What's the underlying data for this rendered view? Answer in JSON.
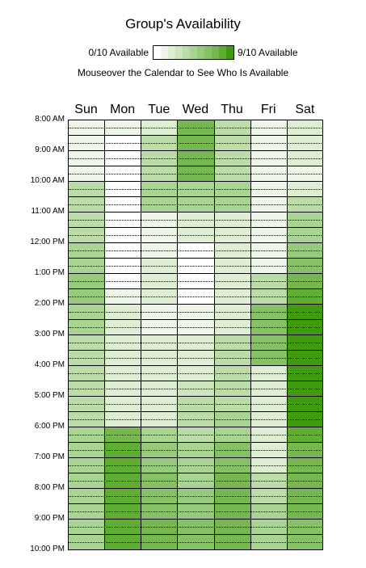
{
  "title": "Group's Availability",
  "legend": {
    "min_label": "0/10 Available",
    "max_label": "9/10 Available",
    "max_count": 9,
    "scale_colors": [
      "#ffffff",
      "#eef6e9",
      "#ddeed3",
      "#cce5bd",
      "#bbdca7",
      "#a9d391",
      "#98ca7b",
      "#87c165",
      "#76b84f",
      "#5fad33",
      "#3f9b0d"
    ]
  },
  "instructions": "Mouseover the Calendar to See Who Is Available",
  "days": [
    "Sun",
    "Mon",
    "Tue",
    "Wed",
    "Thu",
    "Fri",
    "Sat"
  ],
  "time_labels": [
    "8:00 AM",
    "9:00 AM",
    "10:00 AM",
    "11:00 AM",
    "12:00 PM",
    "1:00 PM",
    "2:00 PM",
    "3:00 PM",
    "4:00 PM",
    "5:00 PM",
    "6:00 PM",
    "7:00 PM",
    "8:00 PM",
    "9:00 PM",
    "10:00 PM"
  ],
  "availability_colors": [
    [
      "#eef6e9",
      "#eef6e9",
      "#eef6e9",
      "#eef6e9",
      "#eef6e9",
      "#eef6e9",
      "#eef6e9",
      "#eef6e9",
      "#bbdca7",
      "#bbdca7",
      "#bbdca7",
      "#bbdca7",
      "#bbdca7",
      "#bbdca7",
      "#bbdca7",
      "#bbdca7",
      "#a9d391",
      "#a9d391",
      "#a9d391",
      "#a9d391",
      "#98ca7b",
      "#98ca7b",
      "#98ca7b",
      "#98ca7b",
      "#a9d391",
      "#a9d391",
      "#a9d391",
      "#a9d391",
      "#bbdca7",
      "#bbdca7",
      "#bbdca7",
      "#bbdca7",
      "#bbdca7",
      "#bbdca7",
      "#bbdca7",
      "#bbdca7",
      "#bbdca7",
      "#bbdca7",
      "#bbdca7",
      "#bbdca7",
      "#a9d391",
      "#a9d391",
      "#a9d391",
      "#a9d391",
      "#a9d391",
      "#a9d391",
      "#a9d391",
      "#a9d391",
      "#a9d391",
      "#a9d391",
      "#a9d391",
      "#a9d391",
      "#a9d391",
      "#a9d391",
      "#a9d391",
      "#a9d391"
    ],
    [
      "#eef6e9",
      "#eef6e9",
      "#ffffff",
      "#ffffff",
      "#ffffff",
      "#ffffff",
      "#ffffff",
      "#ffffff",
      "#ffffff",
      "#ffffff",
      "#ffffff",
      "#ffffff",
      "#ffffff",
      "#ffffff",
      "#ffffff",
      "#ffffff",
      "#ffffff",
      "#ffffff",
      "#ffffff",
      "#ffffff",
      "#ffffff",
      "#ffffff",
      "#eef6e9",
      "#eef6e9",
      "#ddeed3",
      "#ddeed3",
      "#ddeed3",
      "#ddeed3",
      "#ddeed3",
      "#ddeed3",
      "#ddeed3",
      "#ddeed3",
      "#ddeed3",
      "#ddeed3",
      "#ddeed3",
      "#ddeed3",
      "#ddeed3",
      "#ddeed3",
      "#ddeed3",
      "#ddeed3",
      "#76b84f",
      "#76b84f",
      "#5fad33",
      "#5fad33",
      "#5fad33",
      "#5fad33",
      "#5fad33",
      "#5fad33",
      "#5fad33",
      "#5fad33",
      "#5fad33",
      "#5fad33",
      "#5fad33",
      "#5fad33",
      "#5fad33",
      "#5fad33"
    ],
    [
      "#ddeed3",
      "#ddeed3",
      "#bbdca7",
      "#bbdca7",
      "#bbdca7",
      "#bbdca7",
      "#bbdca7",
      "#bbdca7",
      "#a9d391",
      "#a9d391",
      "#a9d391",
      "#a9d391",
      "#eef6e9",
      "#eef6e9",
      "#eef6e9",
      "#eef6e9",
      "#eef6e9",
      "#eef6e9",
      "#ddeed3",
      "#ddeed3",
      "#ddeed3",
      "#ddeed3",
      "#ddeed3",
      "#ddeed3",
      "#eef6e9",
      "#eef6e9",
      "#eef6e9",
      "#eef6e9",
      "#ddeed3",
      "#ddeed3",
      "#ddeed3",
      "#ddeed3",
      "#ddeed3",
      "#ddeed3",
      "#ddeed3",
      "#ddeed3",
      "#ddeed3",
      "#ddeed3",
      "#ddeed3",
      "#ddeed3",
      "#a9d391",
      "#a9d391",
      "#98ca7b",
      "#98ca7b",
      "#98ca7b",
      "#98ca7b",
      "#87c165",
      "#87c165",
      "#87c165",
      "#87c165",
      "#87c165",
      "#87c165",
      "#76b84f",
      "#76b84f",
      "#76b84f",
      "#76b84f"
    ],
    [
      "#76b84f",
      "#76b84f",
      "#76b84f",
      "#76b84f",
      "#76b84f",
      "#76b84f",
      "#76b84f",
      "#76b84f",
      "#a9d391",
      "#a9d391",
      "#a9d391",
      "#a9d391",
      "#ddeed3",
      "#ddeed3",
      "#ddeed3",
      "#ddeed3",
      "#ffffff",
      "#ffffff",
      "#ffffff",
      "#ffffff",
      "#ffffff",
      "#ffffff",
      "#ffffff",
      "#ffffff",
      "#eef6e9",
      "#eef6e9",
      "#eef6e9",
      "#eef6e9",
      "#ddeed3",
      "#ddeed3",
      "#ddeed3",
      "#ddeed3",
      "#ddeed3",
      "#ddeed3",
      "#cce5bd",
      "#cce5bd",
      "#bbdca7",
      "#bbdca7",
      "#bbdca7",
      "#bbdca7",
      "#bbdca7",
      "#bbdca7",
      "#a9d391",
      "#a9d391",
      "#a9d391",
      "#a9d391",
      "#a9d391",
      "#a9d391",
      "#98ca7b",
      "#98ca7b",
      "#98ca7b",
      "#98ca7b",
      "#87c165",
      "#87c165",
      "#87c165",
      "#87c165"
    ],
    [
      "#bbdca7",
      "#bbdca7",
      "#bbdca7",
      "#bbdca7",
      "#bbdca7",
      "#bbdca7",
      "#bbdca7",
      "#bbdca7",
      "#a9d391",
      "#a9d391",
      "#a9d391",
      "#a9d391",
      "#ddeed3",
      "#ddeed3",
      "#ddeed3",
      "#ddeed3",
      "#ddeed3",
      "#ddeed3",
      "#ddeed3",
      "#ddeed3",
      "#ddeed3",
      "#ddeed3",
      "#ddeed3",
      "#ddeed3",
      "#ddeed3",
      "#ddeed3",
      "#ddeed3",
      "#ddeed3",
      "#bbdca7",
      "#bbdca7",
      "#bbdca7",
      "#bbdca7",
      "#bbdca7",
      "#bbdca7",
      "#bbdca7",
      "#bbdca7",
      "#bbdca7",
      "#bbdca7",
      "#a9d391",
      "#a9d391",
      "#a9d391",
      "#a9d391",
      "#87c165",
      "#87c165",
      "#87c165",
      "#87c165",
      "#76b84f",
      "#76b84f",
      "#76b84f",
      "#76b84f",
      "#76b84f",
      "#76b84f",
      "#76b84f",
      "#76b84f",
      "#76b84f",
      "#76b84f"
    ],
    [
      "#eef6e9",
      "#eef6e9",
      "#eef6e9",
      "#eef6e9",
      "#eef6e9",
      "#eef6e9",
      "#eef6e9",
      "#eef6e9",
      "#eef6e9",
      "#eef6e9",
      "#eef6e9",
      "#eef6e9",
      "#eef6e9",
      "#eef6e9",
      "#eef6e9",
      "#eef6e9",
      "#eef6e9",
      "#eef6e9",
      "#eef6e9",
      "#eef6e9",
      "#bbdca7",
      "#bbdca7",
      "#bbdca7",
      "#bbdca7",
      "#87c165",
      "#87c165",
      "#87c165",
      "#87c165",
      "#87c165",
      "#87c165",
      "#87c165",
      "#87c165",
      "#ddeed3",
      "#ddeed3",
      "#ddeed3",
      "#ddeed3",
      "#ddeed3",
      "#ddeed3",
      "#ddeed3",
      "#ddeed3",
      "#ddeed3",
      "#ddeed3",
      "#ddeed3",
      "#ddeed3",
      "#ddeed3",
      "#ddeed3",
      "#bbdca7",
      "#bbdca7",
      "#bbdca7",
      "#bbdca7",
      "#a9d391",
      "#a9d391",
      "#a9d391",
      "#a9d391",
      "#a9d391",
      "#a9d391"
    ],
    [
      "#ddeed3",
      "#ddeed3",
      "#ddeed3",
      "#ddeed3",
      "#ddeed3",
      "#ddeed3",
      "#eef6e9",
      "#eef6e9",
      "#ddeed3",
      "#ddeed3",
      "#bbdca7",
      "#bbdca7",
      "#a9d391",
      "#a9d391",
      "#a9d391",
      "#a9d391",
      "#98ca7b",
      "#98ca7b",
      "#87c165",
      "#87c165",
      "#76b84f",
      "#76b84f",
      "#5fad33",
      "#5fad33",
      "#3f9b0d",
      "#3f9b0d",
      "#3f9b0d",
      "#3f9b0d",
      "#3f9b0d",
      "#3f9b0d",
      "#3f9b0d",
      "#3f9b0d",
      "#3f9b0d",
      "#3f9b0d",
      "#3f9b0d",
      "#3f9b0d",
      "#3f9b0d",
      "#3f9b0d",
      "#3f9b0d",
      "#3f9b0d",
      "#5fad33",
      "#5fad33",
      "#76b84f",
      "#76b84f",
      "#76b84f",
      "#76b84f",
      "#76b84f",
      "#76b84f",
      "#76b84f",
      "#76b84f",
      "#76b84f",
      "#76b84f",
      "#87c165",
      "#87c165",
      "#87c165",
      "#87c165"
    ]
  ]
}
